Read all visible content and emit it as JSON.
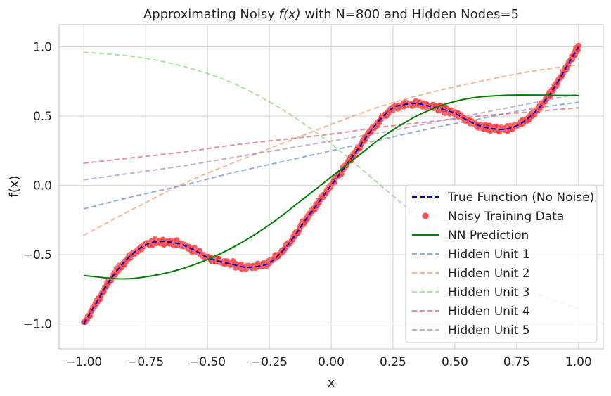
{
  "chart_data": {
    "type": "scatter",
    "title_parts": [
      "Approximating Noisy ",
      "f(x)",
      " with N=800 and Hidden Nodes=5"
    ],
    "xlabel": "x",
    "ylabel": "f(x)",
    "xlim": [
      -1.1,
      1.1
    ],
    "ylim": [
      -1.18,
      1.16
    ],
    "x_ticks": [
      -1.0,
      -0.75,
      -0.5,
      -0.25,
      0.0,
      0.25,
      0.5,
      0.75,
      1.0
    ],
    "x_tick_labels": [
      "−1.00",
      "−0.75",
      "−0.50",
      "−0.25",
      "0.00",
      "0.25",
      "0.50",
      "0.75",
      "1.00"
    ],
    "y_ticks": [
      -1.0,
      -0.5,
      0.0,
      0.5,
      1.0
    ],
    "y_tick_labels": [
      "−1.0",
      "−0.5",
      "0.0",
      "0.5",
      "1.0"
    ],
    "grid": true,
    "legend_position": "lower-right",
    "series": [
      {
        "name": "True Function (No Noise)",
        "kind": "line",
        "style": "dashed",
        "color": "#0000cc",
        "x": [
          -1.0,
          -0.95,
          -0.9,
          -0.85,
          -0.8,
          -0.75,
          -0.7,
          -0.65,
          -0.6,
          -0.55,
          -0.5,
          -0.45,
          -0.4,
          -0.35,
          -0.3,
          -0.25,
          -0.2,
          -0.15,
          -0.1,
          -0.05,
          0.0,
          0.05,
          0.1,
          0.15,
          0.2,
          0.25,
          0.3,
          0.35,
          0.4,
          0.45,
          0.5,
          0.55,
          0.6,
          0.65,
          0.7,
          0.75,
          0.8,
          0.85,
          0.9,
          0.95,
          1.0
        ],
        "y": [
          -1.0,
          -0.85,
          -0.7,
          -0.58,
          -0.49,
          -0.43,
          -0.405,
          -0.41,
          -0.43,
          -0.47,
          -0.52,
          -0.55,
          -0.57,
          -0.59,
          -0.585,
          -0.56,
          -0.48,
          -0.37,
          -0.24,
          -0.12,
          0.0,
          0.12,
          0.24,
          0.37,
          0.48,
          0.56,
          0.585,
          0.59,
          0.57,
          0.55,
          0.52,
          0.47,
          0.43,
          0.41,
          0.405,
          0.43,
          0.49,
          0.58,
          0.7,
          0.85,
          1.0
        ]
      },
      {
        "name": "Noisy Training Data",
        "kind": "scatter",
        "color": "#ff3333"
      },
      {
        "name": "NN Prediction",
        "kind": "line",
        "style": "solid",
        "color": "#008000",
        "x": [
          -1.0,
          -0.95,
          -0.9,
          -0.85,
          -0.8,
          -0.75,
          -0.7,
          -0.65,
          -0.6,
          -0.55,
          -0.5,
          -0.45,
          -0.4,
          -0.35,
          -0.3,
          -0.25,
          -0.2,
          -0.15,
          -0.1,
          -0.05,
          0.0,
          0.05,
          0.1,
          0.15,
          0.2,
          0.25,
          0.3,
          0.35,
          0.4,
          0.45,
          0.5,
          0.55,
          0.6,
          0.65,
          0.7,
          0.75,
          0.8,
          0.85,
          0.9,
          0.95,
          1.0
        ],
        "y": [
          -0.65,
          -0.66,
          -0.67,
          -0.675,
          -0.672,
          -0.66,
          -0.645,
          -0.625,
          -0.6,
          -0.57,
          -0.535,
          -0.495,
          -0.45,
          -0.4,
          -0.345,
          -0.285,
          -0.22,
          -0.15,
          -0.08,
          -0.01,
          0.06,
          0.13,
          0.2,
          0.27,
          0.34,
          0.4,
          0.455,
          0.505,
          0.545,
          0.58,
          0.605,
          0.625,
          0.638,
          0.645,
          0.65,
          0.652,
          0.652,
          0.651,
          0.65,
          0.649,
          0.648
        ]
      },
      {
        "name": "Hidden Unit 1",
        "kind": "line",
        "style": "dashed",
        "color": "#4c78c8",
        "x": [
          -1.0,
          -0.8,
          -0.6,
          -0.4,
          -0.2,
          0.0,
          0.2,
          0.4,
          0.6,
          0.8,
          1.0
        ],
        "y": [
          -0.17,
          -0.08,
          0.0,
          0.09,
          0.17,
          0.25,
          0.33,
          0.41,
          0.48,
          0.55,
          0.6
        ]
      },
      {
        "name": "Hidden Unit 2",
        "kind": "line",
        "style": "dashed",
        "color": "#ee8a55",
        "x": [
          -1.0,
          -0.8,
          -0.6,
          -0.4,
          -0.2,
          0.0,
          0.2,
          0.4,
          0.6,
          0.8,
          1.0
        ],
        "y": [
          -0.36,
          -0.17,
          0.01,
          0.16,
          0.3,
          0.44,
          0.57,
          0.67,
          0.75,
          0.82,
          0.87
        ]
      },
      {
        "name": "Hidden Unit 3",
        "kind": "line",
        "style": "dashed",
        "color": "#77d065",
        "x": [
          -1.0,
          -0.8,
          -0.6,
          -0.4,
          -0.2,
          0.0,
          0.2,
          0.4,
          0.6,
          0.8,
          1.0
        ],
        "y": [
          0.96,
          0.93,
          0.86,
          0.74,
          0.55,
          0.3,
          0.0,
          -0.3,
          -0.57,
          -0.76,
          -0.89
        ]
      },
      {
        "name": "Hidden Unit 4",
        "kind": "line",
        "style": "dashed",
        "color": "#d64a58",
        "x": [
          -1.0,
          -0.8,
          -0.6,
          -0.4,
          -0.2,
          0.0,
          0.2,
          0.4,
          0.6,
          0.8,
          1.0
        ],
        "y": [
          0.16,
          0.2,
          0.24,
          0.29,
          0.33,
          0.37,
          0.42,
          0.46,
          0.5,
          0.53,
          0.56
        ]
      },
      {
        "name": "Hidden Unit 5",
        "kind": "line",
        "style": "dashed",
        "color": "#9d78c0",
        "x": [
          -1.0,
          -0.8,
          -0.6,
          -0.4,
          -0.2,
          0.0,
          0.2,
          0.4,
          0.6,
          0.8,
          1.0
        ],
        "y": [
          0.04,
          0.09,
          0.14,
          0.2,
          0.26,
          0.32,
          0.38,
          0.45,
          0.52,
          0.59,
          0.66
        ]
      }
    ]
  }
}
